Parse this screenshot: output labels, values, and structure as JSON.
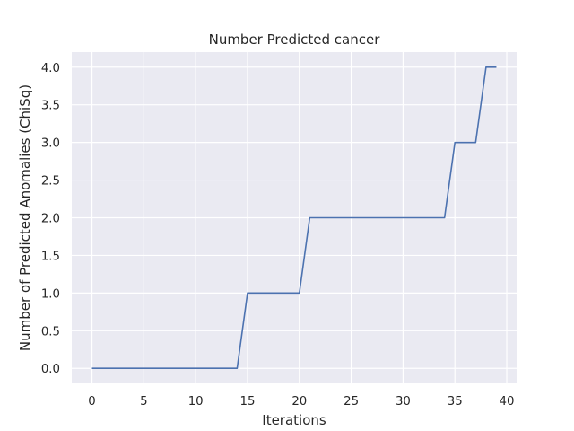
{
  "chart_data": {
    "type": "line",
    "title": "Number Predicted cancer",
    "xlabel": "Iterations",
    "ylabel": "Number of Predicted Anomalies (ChiSq)",
    "xlim": [
      -1.95,
      40.95
    ],
    "ylim": [
      -0.2,
      4.2
    ],
    "xticks": [
      0,
      5,
      10,
      15,
      20,
      25,
      30,
      35,
      40
    ],
    "xtick_labels": [
      "0",
      "5",
      "10",
      "15",
      "20",
      "25",
      "30",
      "35",
      "40"
    ],
    "yticks": [
      0.0,
      0.5,
      1.0,
      1.5,
      2.0,
      2.5,
      3.0,
      3.5,
      4.0
    ],
    "ytick_labels": [
      "0.0",
      "0.5",
      "1.0",
      "1.5",
      "2.0",
      "2.5",
      "3.0",
      "3.5",
      "4.0"
    ],
    "grid": true,
    "background_color": "#eaeaf2",
    "series": [
      {
        "color": "#4c72b0",
        "x": [
          0,
          1,
          2,
          3,
          4,
          5,
          6,
          7,
          8,
          9,
          10,
          11,
          12,
          13,
          14,
          15,
          16,
          17,
          18,
          19,
          20,
          21,
          22,
          23,
          24,
          25,
          26,
          27,
          28,
          29,
          30,
          31,
          32,
          33,
          34,
          35,
          36,
          37,
          38,
          39
        ],
        "y": [
          0,
          0,
          0,
          0,
          0,
          0,
          0,
          0,
          0,
          0,
          0,
          0,
          0,
          0,
          0,
          1,
          1,
          1,
          1,
          1,
          1,
          2,
          2,
          2,
          2,
          2,
          2,
          2,
          2,
          2,
          2,
          2,
          2,
          2,
          2,
          3,
          3,
          3,
          4,
          4
        ]
      }
    ]
  }
}
